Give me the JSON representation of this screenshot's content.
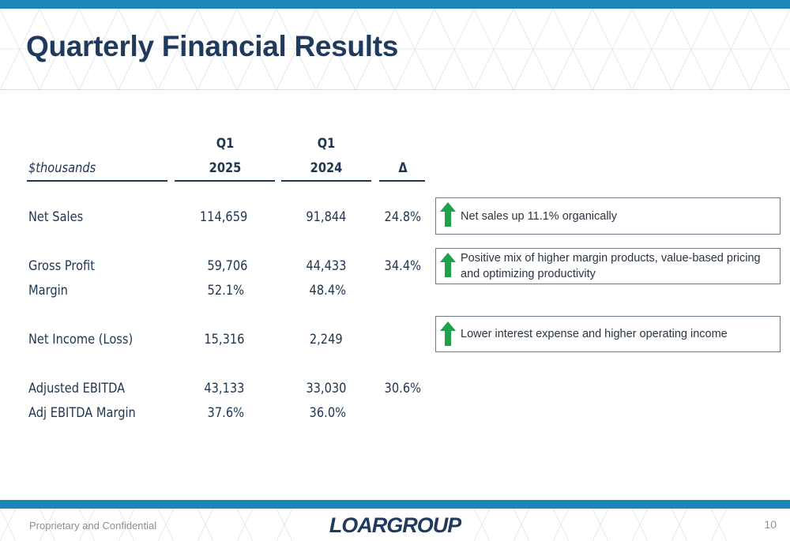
{
  "slide": {
    "title": "Quarterly Financial Results",
    "page_number": "10",
    "footer_text": "Proprietary and Confidential",
    "logo_text": "LOARGROUP"
  },
  "colors": {
    "accent_bar": "#1b87b8",
    "title": "#1f3a5c",
    "table_text": "#1f3550",
    "up_arrow": "#1fa34a"
  },
  "table": {
    "unit_label": "$thousands",
    "columns": [
      {
        "line1": "Q1",
        "line2": "2025"
      },
      {
        "line1": "Q1",
        "line2": "2024"
      },
      {
        "line1": "",
        "line2": "Δ"
      }
    ],
    "rows": [
      {
        "label": "Net Sales",
        "q1_2025": "114,659",
        "q1_2024": "91,844",
        "delta": "24.8%"
      },
      {
        "label": "Gross Profit",
        "q1_2025": "59,706",
        "q1_2024": "44,433",
        "delta": "34.4%"
      },
      {
        "label": "Margin",
        "q1_2025": "52.1%",
        "q1_2024": "48.4%",
        "delta": ""
      },
      {
        "label": "Net Income (Loss)",
        "q1_2025": "15,316",
        "q1_2024": "2,249",
        "delta": ""
      },
      {
        "label": "Adjusted EBITDA",
        "q1_2025": "43,133",
        "q1_2024": "33,030",
        "delta": "30.6%"
      },
      {
        "label": "Adj EBITDA Margin",
        "q1_2025": "37.6%",
        "q1_2024": "36.0%",
        "delta": ""
      }
    ]
  },
  "notes": [
    {
      "icon": "up-arrow-icon",
      "lines": [
        "Net sales up 11.1% organically"
      ]
    },
    {
      "icon": "up-arrow-icon",
      "lines": [
        "Positive mix of higher margin products, value-based pricing",
        "and optimizing productivity"
      ]
    },
    {
      "icon": "up-arrow-icon",
      "lines": [
        "Lower interest expense and higher operating income"
      ]
    }
  ]
}
